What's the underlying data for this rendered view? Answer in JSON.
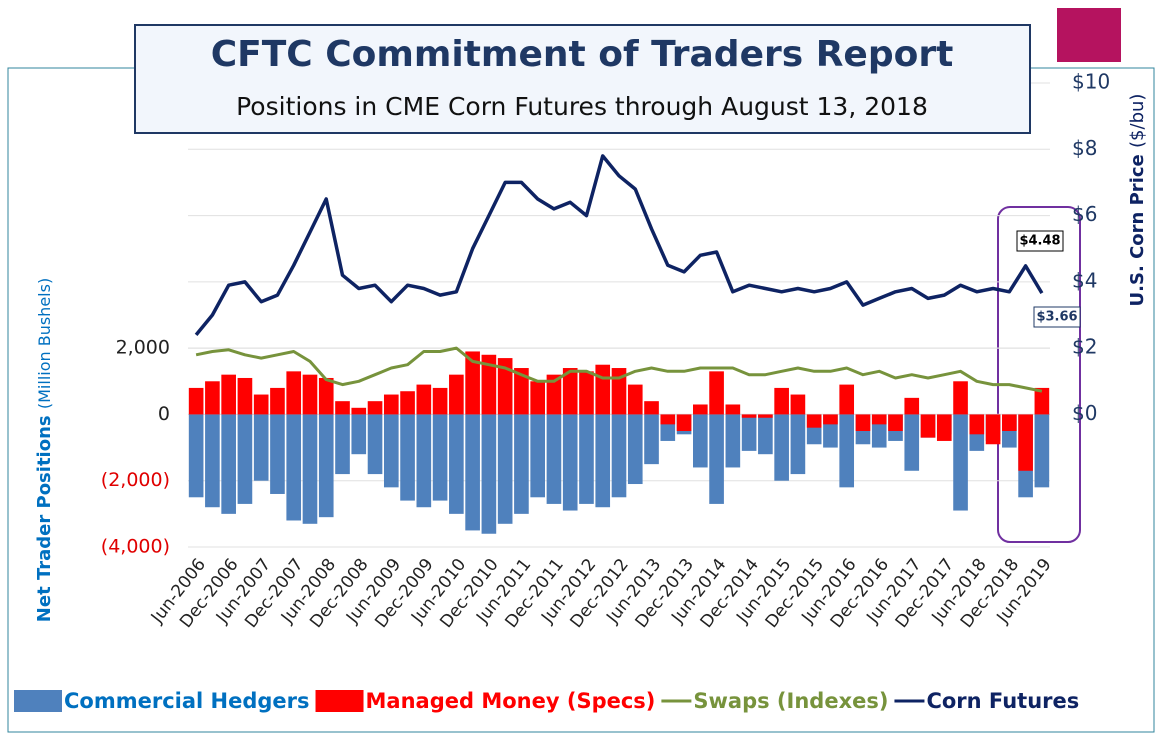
{
  "chart_data": {
    "type": "bar-line",
    "title": "CFTC Commitment of Traders Report",
    "subtitle": "Positions in CME Corn Futures through August 13, 2018",
    "y_label": "Net Trader Positions",
    "y_label_unit": "(Million Bushels)",
    "y2_label": "U.S. Corn Price",
    "y2_label_unit": "($/bu)",
    "annotations": [
      "$4.48",
      "$3.66"
    ],
    "categories": [
      "Jun-2006",
      null,
      "Dec-2006",
      null,
      "Jun-2007",
      null,
      "Dec-2007",
      null,
      "Jun-2008",
      null,
      "Dec-2008",
      null,
      "Jun-2009",
      null,
      "Dec-2009",
      null,
      "Jun-2010",
      null,
      "Dec-2010",
      null,
      "Jun-2011",
      null,
      "Dec-2011",
      null,
      "Jun-2012",
      null,
      "Dec-2012",
      null,
      "Jun-2013",
      null,
      "Dec-2013",
      null,
      "Jun-2014",
      null,
      "Dec-2014",
      null,
      "Jun-2015",
      null,
      "Dec-2015",
      null,
      "Jun-2016",
      null,
      "Dec-2016",
      null,
      "Jun-2017",
      null,
      "Dec-2017",
      null,
      "Jun-2018",
      null,
      "Dec-2018",
      null,
      "Jun-2019"
    ],
    "ylim": [
      -4000,
      10000
    ],
    "yticks": [
      {
        "value": -4000,
        "label": "(4,000)"
      },
      {
        "value": -2000,
        "label": "(2,000)"
      },
      0,
      {
        "value": 2000,
        "label": "2,000"
      }
    ],
    "y2lim": [
      -4,
      10
    ],
    "y2ticks": [
      {
        "value": 0,
        "label": "$0"
      },
      {
        "value": 2,
        "label": "$2"
      },
      {
        "value": 4,
        "label": "$4"
      },
      {
        "value": 6,
        "label": "$6"
      },
      {
        "value": 8,
        "label": "$8"
      },
      {
        "value": 10,
        "label": "$10"
      }
    ],
    "grid": true,
    "series": [
      {
        "name": "Commercial Hedgers",
        "kind": "bar",
        "color": "#4f81bd",
        "values": [
          -2500,
          -2800,
          -3000,
          -2700,
          -2000,
          -2400,
          -3200,
          -3300,
          -3100,
          -1800,
          -1200,
          -1800,
          -2200,
          -2600,
          -2800,
          -2600,
          -3000,
          -3500,
          -3600,
          -3300,
          -3000,
          -2500,
          -2700,
          -2900,
          -2700,
          -2800,
          -2500,
          -2100,
          -1500,
          -800,
          -600,
          -1600,
          -2700,
          -1600,
          -1100,
          -1200,
          -2000,
          -1800,
          -900,
          -1000,
          -2200,
          -900,
          -1000,
          -800,
          -1700,
          -700,
          -600,
          -2900,
          -1100,
          -800,
          -1000,
          -2500,
          -2200
        ]
      },
      {
        "name": "Managed Money (Specs)",
        "kind": "bar",
        "color": "#ff0000",
        "values": [
          800,
          1000,
          1200,
          1100,
          600,
          800,
          1300,
          1200,
          1100,
          400,
          200,
          400,
          600,
          700,
          900,
          800,
          1200,
          1900,
          1800,
          1700,
          1400,
          1000,
          1200,
          1400,
          1300,
          1500,
          1400,
          900,
          400,
          -300,
          -500,
          300,
          1300,
          300,
          -100,
          -100,
          800,
          600,
          -400,
          -300,
          900,
          -500,
          -300,
          -500,
          500,
          -700,
          -800,
          1000,
          -600,
          -900,
          -500,
          -1700,
          800
        ]
      },
      {
        "name": "Swaps (Indexes)",
        "kind": "line",
        "color": "#77933c",
        "values": [
          1800,
          1900,
          1950,
          1800,
          1700,
          1800,
          1900,
          1600,
          1050,
          900,
          1000,
          1200,
          1400,
          1500,
          1900,
          1900,
          2000,
          1600,
          1500,
          1400,
          1200,
          1000,
          1000,
          1300,
          1300,
          1100,
          1100,
          1300,
          1400,
          1300,
          1300,
          1400,
          1400,
          1400,
          1200,
          1200,
          1300,
          1400,
          1300,
          1300,
          1400,
          1200,
          1300,
          1100,
          1200,
          1100,
          1200,
          1300,
          1000,
          900,
          900,
          800,
          700
        ]
      },
      {
        "name": "Corn Futures",
        "kind": "line",
        "axis": "y2",
        "color": "#0e2363",
        "values": [
          2.4,
          3.0,
          3.9,
          4.0,
          3.4,
          3.6,
          4.5,
          5.5,
          6.5,
          4.2,
          3.8,
          3.9,
          3.4,
          3.9,
          3.8,
          3.6,
          3.7,
          5.0,
          6.0,
          7.0,
          7.0,
          6.5,
          6.2,
          6.4,
          6.0,
          7.8,
          7.2,
          6.8,
          5.6,
          4.5,
          4.3,
          4.8,
          4.9,
          3.7,
          3.9,
          3.8,
          3.7,
          3.8,
          3.7,
          3.8,
          4.0,
          3.3,
          3.5,
          3.7,
          3.8,
          3.5,
          3.6,
          3.9,
          3.7,
          3.8,
          3.7,
          4.48,
          3.66
        ]
      }
    ]
  }
}
